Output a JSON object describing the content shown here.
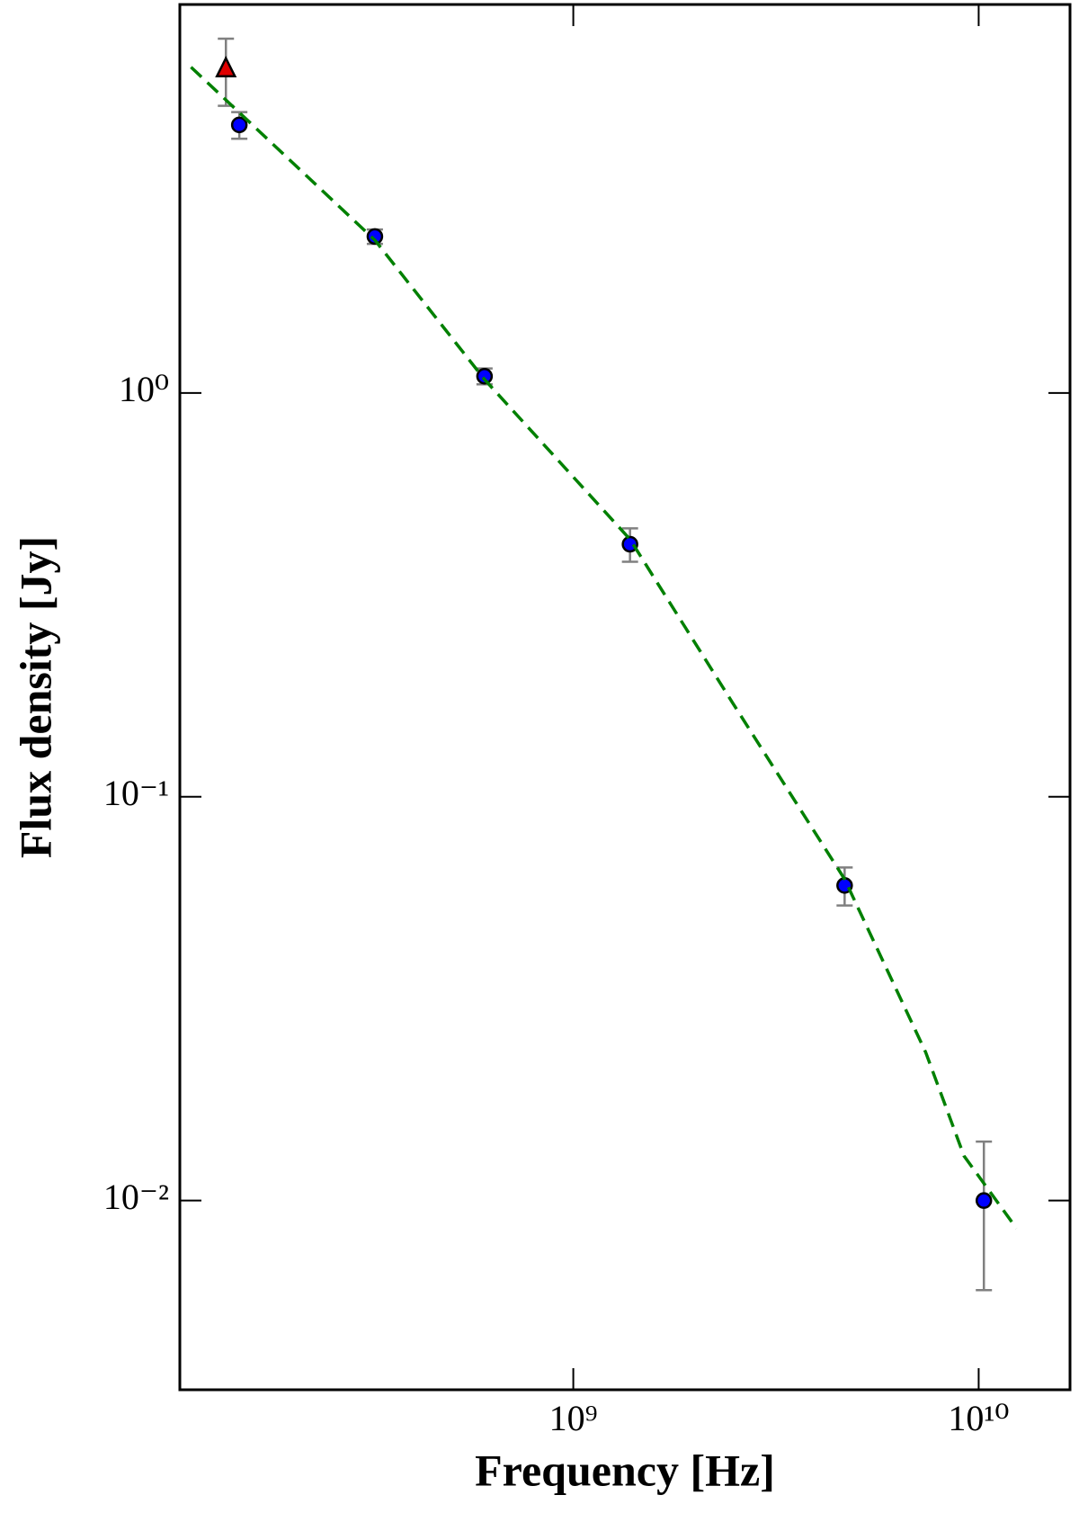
{
  "chart_data": {
    "type": "scatter",
    "x_label": "Frequency [Hz]",
    "y_label": "Flux density [Jy]",
    "xscale": "log",
    "yscale": "log",
    "xlim": [
      107000000,
      16800000000
    ],
    "ylim": [
      0.0034,
      9.16
    ],
    "xticks": [
      {
        "value": 1000000000,
        "label": "10⁹"
      },
      {
        "value": 10000000000,
        "label": "10¹⁰"
      }
    ],
    "yticks": [
      {
        "value": 0.01,
        "label": "10⁻²"
      },
      {
        "value": 0.1,
        "label": "10⁻¹"
      },
      {
        "value": 1,
        "label": "10⁰"
      }
    ],
    "error_color": "#808080",
    "series": [
      {
        "marker": "triangle",
        "color": "#e00000",
        "x": [
          139000000
        ],
        "values": [
          6.34
        ],
        "errors": [
          1.2
        ]
      },
      {
        "marker": "circle",
        "color": "#0000ff",
        "x": [
          150000000,
          324000000,
          604000000,
          1380000000,
          4670000000,
          10300000000
        ],
        "values": [
          4.61,
          2.44,
          1.1,
          0.422,
          0.0603,
          0.01
        ],
        "errors": [
          0.35,
          0.1,
          0.05,
          0.04,
          0.0065,
          0.004
        ]
      },
      {
        "marker": "dashed-line",
        "color": "#008000",
        "x": [
          114000000,
          324000000,
          604000000,
          1380000000,
          2470000000,
          4670000000,
          7400000000,
          9200000000,
          12400000000
        ],
        "values": [
          6.41,
          2.39,
          1.08,
          0.434,
          0.171,
          0.0625,
          0.0233,
          0.0129,
          0.00853
        ]
      }
    ]
  }
}
